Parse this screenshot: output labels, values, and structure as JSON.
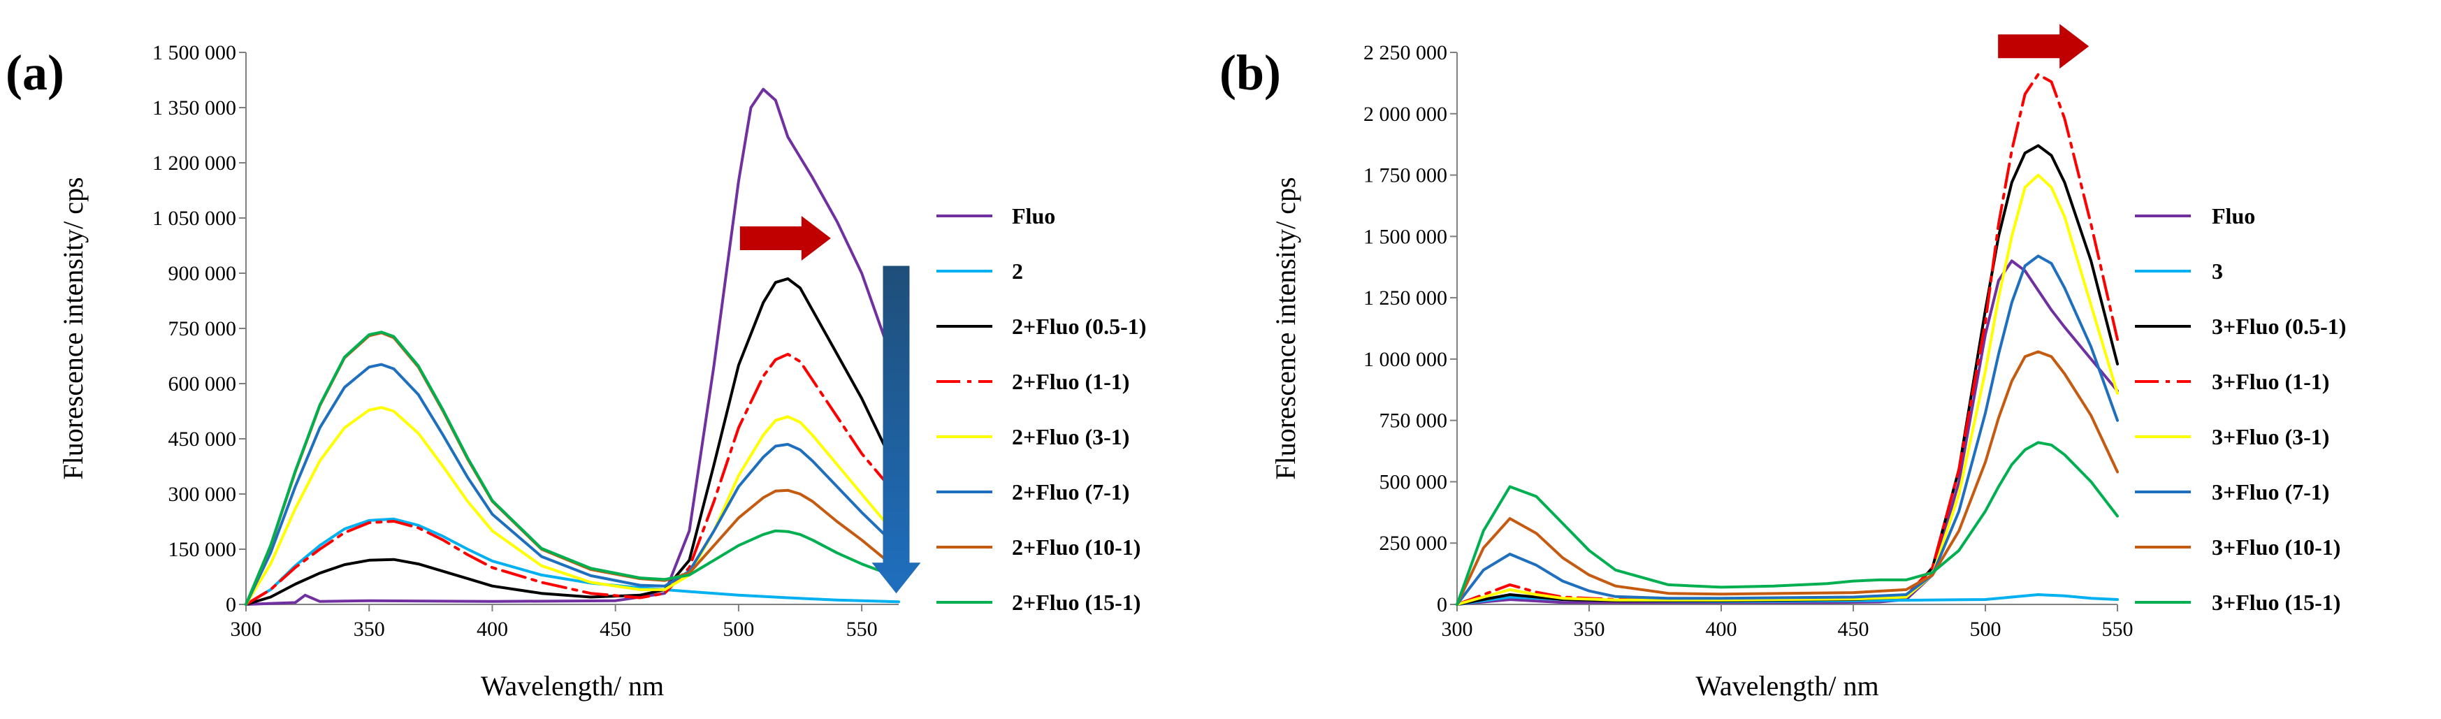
{
  "chart_data": [
    {
      "type": "line",
      "panel_label": "(a)",
      "xlabel": "Wavelength/  nm",
      "ylabel": "Fluorescence intensity/  cps",
      "xlim": [
        300,
        565
      ],
      "ylim": [
        0,
        1500000
      ],
      "x_ticks": [
        300,
        350,
        400,
        450,
        500,
        550
      ],
      "x_tick_labels": [
        "300",
        "350",
        "400",
        "450",
        "500",
        "550"
      ],
      "y_ticks": [
        0,
        150000,
        300000,
        450000,
        600000,
        750000,
        900000,
        1050000,
        1200000,
        1350000,
        1500000
      ],
      "y_tick_labels": [
        "0",
        "150 000",
        "300 000",
        "450 000",
        "600 000",
        "750 000",
        "900 000",
        "1 050 000",
        "1 200 000",
        "1 350 000",
        "1 500 000"
      ],
      "grid": false,
      "legend_position": "right",
      "annotations": [
        {
          "kind": "arrow-right",
          "color": "#c00000",
          "x": 519,
          "y": 995000
        },
        {
          "kind": "arrow-down",
          "color": "#1f6fbf",
          "x": 564,
          "y_from": 920000,
          "y_to": 30000
        }
      ],
      "series": [
        {
          "name": "Fluo",
          "color": "#7030a0",
          "dash": "solid",
          "x": [
            300,
            320,
            324,
            330,
            350,
            400,
            450,
            470,
            480,
            490,
            500,
            505,
            510,
            515,
            520,
            530,
            540,
            550,
            560,
            565
          ],
          "y": [
            0,
            5000,
            25000,
            8000,
            10000,
            8000,
            10000,
            30000,
            200000,
            650000,
            1150000,
            1350000,
            1400000,
            1370000,
            1270000,
            1160000,
            1040000,
            900000,
            710000,
            640000
          ]
        },
        {
          "name": "2",
          "color": "#00b0f0",
          "dash": "solid",
          "x": [
            300,
            310,
            320,
            330,
            340,
            350,
            360,
            370,
            380,
            390,
            400,
            420,
            440,
            460,
            480,
            500,
            520,
            540,
            560,
            565
          ],
          "y": [
            0,
            40000,
            105000,
            160000,
            205000,
            228000,
            232000,
            215000,
            185000,
            150000,
            118000,
            80000,
            58000,
            45000,
            35000,
            25000,
            18000,
            12000,
            8000,
            7000
          ]
        },
        {
          "name": "2+Fluo (0.5-1)",
          "color": "#000000",
          "dash": "solid",
          "x": [
            300,
            310,
            320,
            330,
            340,
            350,
            360,
            370,
            380,
            390,
            400,
            420,
            440,
            460,
            470,
            480,
            490,
            500,
            510,
            515,
            520,
            525,
            530,
            540,
            550,
            560,
            565
          ],
          "y": [
            0,
            20000,
            55000,
            85000,
            108000,
            120000,
            122000,
            110000,
            90000,
            70000,
            50000,
            30000,
            20000,
            25000,
            40000,
            120000,
            380000,
            650000,
            820000,
            875000,
            885000,
            860000,
            800000,
            680000,
            560000,
            420000,
            380000
          ]
        },
        {
          "name": "2+Fluo (1-1)",
          "color": "#ff0000",
          "dash": "dashdot",
          "x": [
            300,
            310,
            320,
            330,
            340,
            350,
            360,
            370,
            380,
            390,
            400,
            420,
            440,
            460,
            470,
            480,
            490,
            500,
            510,
            515,
            520,
            525,
            530,
            540,
            550,
            560,
            565
          ],
          "y": [
            0,
            40000,
            100000,
            150000,
            195000,
            222000,
            226000,
            208000,
            175000,
            135000,
            100000,
            60000,
            30000,
            18000,
            30000,
            100000,
            280000,
            480000,
            620000,
            665000,
            680000,
            660000,
            610000,
            510000,
            410000,
            330000,
            300000
          ]
        },
        {
          "name": "2+Fluo (3-1)",
          "color": "#ffff00",
          "dash": "solid",
          "x": [
            300,
            310,
            320,
            330,
            340,
            350,
            355,
            360,
            370,
            380,
            390,
            400,
            420,
            440,
            460,
            470,
            480,
            490,
            500,
            510,
            515,
            520,
            525,
            530,
            540,
            550,
            560,
            565
          ],
          "y": [
            0,
            110000,
            260000,
            390000,
            480000,
            528000,
            535000,
            525000,
            465000,
            375000,
            280000,
            200000,
            105000,
            60000,
            40000,
            40000,
            80000,
            200000,
            350000,
            460000,
            500000,
            510000,
            495000,
            460000,
            380000,
            300000,
            220000,
            200000
          ]
        },
        {
          "name": "2+Fluo (7-1)",
          "color": "#1f6fbf",
          "dash": "solid",
          "x": [
            300,
            310,
            320,
            330,
            340,
            350,
            355,
            360,
            370,
            380,
            390,
            400,
            420,
            440,
            460,
            470,
            480,
            490,
            500,
            510,
            515,
            520,
            525,
            530,
            540,
            550,
            560,
            565
          ],
          "y": [
            0,
            140000,
            320000,
            480000,
            590000,
            645000,
            652000,
            640000,
            570000,
            460000,
            345000,
            245000,
            130000,
            78000,
            52000,
            50000,
            90000,
            200000,
            320000,
            400000,
            430000,
            435000,
            420000,
            390000,
            320000,
            250000,
            185000,
            160000
          ]
        },
        {
          "name": "2+Fluo (10-1)",
          "color": "#c55a11",
          "dash": "solid",
          "x": [
            300,
            310,
            320,
            330,
            340,
            350,
            355,
            360,
            370,
            380,
            390,
            400,
            420,
            440,
            460,
            470,
            480,
            490,
            500,
            510,
            515,
            520,
            525,
            530,
            540,
            550,
            560,
            565
          ],
          "y": [
            0,
            158000,
            360000,
            540000,
            670000,
            730000,
            738000,
            725000,
            645000,
            525000,
            395000,
            280000,
            150000,
            95000,
            70000,
            65000,
            85000,
            160000,
            235000,
            290000,
            308000,
            310000,
            300000,
            280000,
            225000,
            175000,
            120000,
            105000
          ]
        },
        {
          "name": "2+Fluo (15-1)",
          "color": "#00b050",
          "dash": "solid",
          "x": [
            300,
            310,
            320,
            330,
            340,
            350,
            355,
            360,
            370,
            380,
            390,
            400,
            420,
            440,
            460,
            470,
            480,
            490,
            500,
            510,
            515,
            520,
            525,
            530,
            540,
            550,
            560,
            565
          ],
          "y": [
            0,
            160000,
            362000,
            542000,
            672000,
            733000,
            740000,
            728000,
            648000,
            528000,
            398000,
            282000,
            152000,
            98000,
            72000,
            68000,
            80000,
            120000,
            160000,
            190000,
            200000,
            198000,
            190000,
            175000,
            140000,
            110000,
            85000,
            78000
          ]
        }
      ],
      "legend": [
        "Fluo",
        "2",
        "2+Fluo (0.5-1)",
        "2+Fluo (1-1)",
        "2+Fluo (3-1)",
        "2+Fluo (7-1)",
        "2+Fluo (10-1)",
        "2+Fluo (15-1)"
      ]
    },
    {
      "type": "line",
      "panel_label": "(b)",
      "xlabel": "Wavelength/  nm",
      "ylabel": "Fluorescence intensity/  cps",
      "xlim": [
        300,
        550
      ],
      "ylim": [
        0,
        2250000
      ],
      "x_ticks": [
        300,
        350,
        400,
        450,
        500,
        550
      ],
      "x_tick_labels": [
        "300",
        "350",
        "400",
        "450",
        "500",
        "550"
      ],
      "y_ticks": [
        0,
        250000,
        500000,
        750000,
        1000000,
        1250000,
        1500000,
        1750000,
        2000000,
        2250000
      ],
      "y_tick_labels": [
        "0",
        "250 000",
        "500 000",
        "750 000",
        "1 000 000",
        "1 250 000",
        "1 500 000",
        "1 750 000",
        "2 000 000",
        "2 250 000"
      ],
      "grid": false,
      "legend_position": "right",
      "annotations": [
        {
          "kind": "arrow-right",
          "color": "#c00000",
          "x": 522,
          "y": 2275000
        }
      ],
      "series": [
        {
          "name": "Fluo",
          "color": "#7030a0",
          "dash": "solid",
          "x": [
            300,
            320,
            340,
            360,
            380,
            400,
            420,
            440,
            460,
            470,
            480,
            490,
            500,
            505,
            510,
            515,
            520,
            525,
            530,
            540,
            550
          ],
          "y": [
            0,
            20000,
            8000,
            8000,
            8000,
            8000,
            8000,
            8000,
            10000,
            20000,
            120000,
            500000,
            1100000,
            1320000,
            1400000,
            1360000,
            1280000,
            1200000,
            1130000,
            1000000,
            870000
          ]
        },
        {
          "name": "3",
          "color": "#00b0f0",
          "dash": "solid",
          "x": [
            300,
            320,
            340,
            360,
            400,
            450,
            500,
            510,
            520,
            530,
            540,
            550
          ],
          "y": [
            0,
            30000,
            20000,
            15000,
            12000,
            15000,
            20000,
            30000,
            40000,
            35000,
            25000,
            20000
          ]
        },
        {
          "name": "3+Fluo (0.5-1)",
          "color": "#000000",
          "dash": "solid",
          "x": [
            300,
            310,
            320,
            330,
            340,
            360,
            400,
            450,
            470,
            480,
            490,
            500,
            505,
            510,
            515,
            520,
            525,
            530,
            540,
            550
          ],
          "y": [
            0,
            20000,
            40000,
            30000,
            20000,
            15000,
            15000,
            20000,
            30000,
            150000,
            550000,
            1200000,
            1500000,
            1720000,
            1840000,
            1870000,
            1830000,
            1720000,
            1400000,
            980000
          ]
        },
        {
          "name": "3+Fluo (1-1)",
          "color": "#ff0000",
          "dash": "dashdot",
          "x": [
            300,
            310,
            320,
            330,
            340,
            360,
            400,
            450,
            470,
            480,
            490,
            500,
            505,
            510,
            515,
            520,
            525,
            530,
            540,
            550
          ],
          "y": [
            0,
            40000,
            80000,
            50000,
            30000,
            20000,
            20000,
            25000,
            35000,
            150000,
            550000,
            1150000,
            1550000,
            1850000,
            2080000,
            2160000,
            2130000,
            1980000,
            1550000,
            1080000
          ]
        },
        {
          "name": "3+Fluo (3-1)",
          "color": "#ffff00",
          "dash": "solid",
          "x": [
            300,
            310,
            320,
            330,
            340,
            360,
            400,
            450,
            470,
            480,
            490,
            500,
            505,
            510,
            515,
            520,
            525,
            530,
            540,
            550
          ],
          "y": [
            0,
            30000,
            60000,
            40000,
            25000,
            18000,
            18000,
            22000,
            30000,
            120000,
            450000,
            950000,
            1250000,
            1500000,
            1700000,
            1750000,
            1700000,
            1580000,
            1220000,
            860000
          ]
        },
        {
          "name": "3+Fluo (7-1)",
          "color": "#1f6fbf",
          "dash": "solid",
          "x": [
            300,
            310,
            320,
            330,
            340,
            350,
            360,
            380,
            400,
            450,
            470,
            480,
            490,
            500,
            505,
            510,
            515,
            520,
            525,
            530,
            540,
            550
          ],
          "y": [
            0,
            140000,
            205000,
            160000,
            95000,
            55000,
            32000,
            25000,
            25000,
            30000,
            40000,
            120000,
            380000,
            780000,
            1020000,
            1230000,
            1380000,
            1420000,
            1390000,
            1290000,
            1050000,
            750000
          ]
        },
        {
          "name": "3+Fluo (10-1)",
          "color": "#c55a11",
          "dash": "solid",
          "x": [
            300,
            310,
            320,
            330,
            340,
            350,
            360,
            380,
            400,
            450,
            470,
            480,
            490,
            500,
            505,
            510,
            515,
            520,
            525,
            530,
            540,
            550
          ],
          "y": [
            0,
            230000,
            350000,
            290000,
            190000,
            120000,
            75000,
            45000,
            42000,
            48000,
            60000,
            120000,
            300000,
            580000,
            760000,
            910000,
            1010000,
            1030000,
            1010000,
            940000,
            770000,
            540000
          ]
        },
        {
          "name": "3+Fluo (15-1)",
          "color": "#00b050",
          "dash": "solid",
          "x": [
            300,
            310,
            320,
            330,
            340,
            350,
            360,
            380,
            400,
            420,
            440,
            450,
            460,
            470,
            480,
            490,
            500,
            505,
            510,
            515,
            520,
            525,
            530,
            540,
            550
          ],
          "y": [
            0,
            300000,
            480000,
            440000,
            330000,
            220000,
            140000,
            80000,
            70000,
            75000,
            85000,
            95000,
            100000,
            100000,
            130000,
            220000,
            380000,
            480000,
            570000,
            630000,
            660000,
            650000,
            610000,
            500000,
            360000
          ]
        }
      ],
      "legend": [
        "Fluo",
        "3",
        "3+Fluo (0.5-1)",
        "3+Fluo (1-1)",
        "3+Fluo (3-1)",
        "3+Fluo (7-1)",
        "3+Fluo (10-1)",
        "3+Fluo (15-1)"
      ]
    }
  ]
}
